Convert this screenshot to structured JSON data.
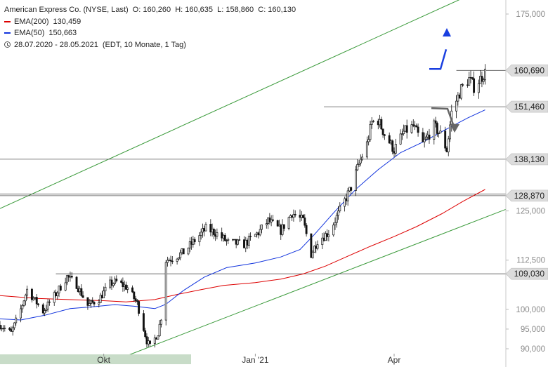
{
  "header": {
    "title": "American Express Co. (NYSE, Last)",
    "ohlc": "O: 160,260  H: 160,635  L: 158,860  C: 160,130",
    "ema200_label": "EMA(200)",
    "ema200_value": "130,459",
    "ema50_label": "EMA(50)",
    "ema50_value": "150,663",
    "range": "28.07.2020 - 28.05.2021",
    "range_info": "(EDT, 10 Monate, 1 Tag)"
  },
  "colors": {
    "ema200": "#dd0000",
    "ema50": "#1133dd",
    "channel": "#3a9a3a",
    "arrow_up": "#1a3fe0",
    "arrow_down": "#666666",
    "candle": "#111111",
    "level": "#555555"
  },
  "icons": {
    "time_range": "clock-icon"
  },
  "chart_data": {
    "type": "candlestick",
    "y_axis": {
      "min": 89000,
      "max": 178000,
      "ticks": [
        {
          "value": 90000,
          "label": "90,000"
        },
        {
          "value": 95000,
          "label": "95,000"
        },
        {
          "value": 100000,
          "label": "100,000"
        },
        {
          "value": 112500,
          "label": "112,500"
        },
        {
          "value": 125000,
          "label": "125,000"
        },
        {
          "value": 175000,
          "label": "175,000"
        }
      ]
    },
    "x_axis": {
      "start": "2020-07-28",
      "end": "2021-05-28",
      "ticks": [
        {
          "date": "2020-10-01",
          "label": "Okt"
        },
        {
          "date": "2021-01-04",
          "label": "Jan '21"
        },
        {
          "date": "2021-04-01",
          "label": "Apr"
        }
      ]
    },
    "levels": [
      {
        "value": 160690,
        "label": "160,690",
        "from": "2021-05-10"
      },
      {
        "value": 151460,
        "label": "151,460",
        "from": "2021-02-16"
      },
      {
        "value": 138130,
        "label": "138,130",
        "from": "2020-07-28"
      },
      {
        "value": 129300,
        "label": "",
        "from": "2020-07-28"
      },
      {
        "value": 128870,
        "label": "128,870",
        "from": "2020-07-28"
      },
      {
        "value": 109030,
        "label": "109,030",
        "from": "2020-09-01"
      }
    ],
    "channel": [
      {
        "start": {
          "date": "2020-07-28",
          "value": 125600
        },
        "end": {
          "date": "2021-06-10",
          "value": 184000
        }
      },
      {
        "start": {
          "date": "2020-10-14",
          "value": 88000
        },
        "end": {
          "date": "2021-06-10",
          "value": 125400
        }
      }
    ],
    "ema200": [
      [
        "2020-07-28",
        103500
      ],
      [
        "2020-08-20",
        102800
      ],
      [
        "2020-09-15",
        102400
      ],
      [
        "2020-10-01",
        102200
      ],
      [
        "2020-10-15",
        101900
      ],
      [
        "2020-11-02",
        102500
      ],
      [
        "2020-11-16",
        103800
      ],
      [
        "2020-12-01",
        105000
      ],
      [
        "2020-12-15",
        106100
      ],
      [
        "2021-01-04",
        106800
      ],
      [
        "2021-01-20",
        107700
      ],
      [
        "2021-02-03",
        109000
      ],
      [
        "2021-02-17",
        111000
      ],
      [
        "2021-03-03",
        113500
      ],
      [
        "2021-03-17",
        116000
      ],
      [
        "2021-04-01",
        118500
      ],
      [
        "2021-04-15",
        121000
      ],
      [
        "2021-05-01",
        124300
      ],
      [
        "2021-05-14",
        127400
      ],
      [
        "2021-05-28",
        130459
      ]
    ],
    "ema50": [
      [
        "2020-07-28",
        97600
      ],
      [
        "2020-08-10",
        97300
      ],
      [
        "2020-08-25",
        98500
      ],
      [
        "2020-09-10",
        100200
      ],
      [
        "2020-09-25",
        100700
      ],
      [
        "2020-10-08",
        101200
      ],
      [
        "2020-10-20",
        100800
      ],
      [
        "2020-11-02",
        100200
      ],
      [
        "2020-11-09",
        101300
      ],
      [
        "2020-11-20",
        104800
      ],
      [
        "2020-12-03",
        108200
      ],
      [
        "2020-12-17",
        110600
      ],
      [
        "2021-01-04",
        111800
      ],
      [
        "2021-01-20",
        113300
      ],
      [
        "2021-02-01",
        115200
      ],
      [
        "2021-02-10",
        119000
      ],
      [
        "2021-02-22",
        124500
      ],
      [
        "2021-03-08",
        130500
      ],
      [
        "2021-03-22",
        135500
      ],
      [
        "2021-04-05",
        139800
      ],
      [
        "2021-04-19",
        142500
      ],
      [
        "2021-05-03",
        145600
      ],
      [
        "2021-05-17",
        148600
      ],
      [
        "2021-05-28",
        150663
      ]
    ],
    "price_path": [
      [
        "2020-07-28",
        96000
      ],
      [
        "2020-08-04",
        94000
      ],
      [
        "2020-08-10",
        100000
      ],
      [
        "2020-08-14",
        105000
      ],
      [
        "2020-08-24",
        99500
      ],
      [
        "2020-09-02",
        104500
      ],
      [
        "2020-09-08",
        108300
      ],
      [
        "2020-09-14",
        106300
      ],
      [
        "2020-09-21",
        101000
      ],
      [
        "2020-09-28",
        102600
      ],
      [
        "2020-10-05",
        106500
      ],
      [
        "2020-10-09",
        107000
      ],
      [
        "2020-10-16",
        105500
      ],
      [
        "2020-10-22",
        101500
      ],
      [
        "2020-10-28",
        92000
      ],
      [
        "2020-10-30",
        90500
      ],
      [
        "2020-11-04",
        94000
      ],
      [
        "2020-11-06",
        98000
      ],
      [
        "2020-11-09",
        112500
      ],
      [
        "2020-11-13",
        113000
      ],
      [
        "2020-11-20",
        114500
      ],
      [
        "2020-11-27",
        117500
      ],
      [
        "2020-12-04",
        120500
      ],
      [
        "2020-12-10",
        119500
      ],
      [
        "2020-12-18",
        117000
      ],
      [
        "2020-12-28",
        116500
      ],
      [
        "2021-01-06",
        119500
      ],
      [
        "2021-01-12",
        122500
      ],
      [
        "2021-01-20",
        120000
      ],
      [
        "2021-01-27",
        124500
      ],
      [
        "2021-02-03",
        122500
      ],
      [
        "2021-02-08",
        114000
      ],
      [
        "2021-02-12",
        117500
      ],
      [
        "2021-02-19",
        119500
      ],
      [
        "2021-02-26",
        125000
      ],
      [
        "2021-03-05",
        131000
      ],
      [
        "2021-03-10",
        137000
      ],
      [
        "2021-03-15",
        142000
      ],
      [
        "2021-03-18",
        147500
      ],
      [
        "2021-03-22",
        148000
      ],
      [
        "2021-03-26",
        144500
      ],
      [
        "2021-04-01",
        140500
      ],
      [
        "2021-04-07",
        145000
      ],
      [
        "2021-04-13",
        146500
      ],
      [
        "2021-04-19",
        142000
      ],
      [
        "2021-04-26",
        146500
      ],
      [
        "2021-04-30",
        144500
      ],
      [
        "2021-05-04",
        140500
      ],
      [
        "2021-05-07",
        150000
      ],
      [
        "2021-05-13",
        156000
      ],
      [
        "2021-05-18",
        158500
      ],
      [
        "2021-05-21",
        156500
      ],
      [
        "2021-05-28",
        160130
      ]
    ]
  }
}
